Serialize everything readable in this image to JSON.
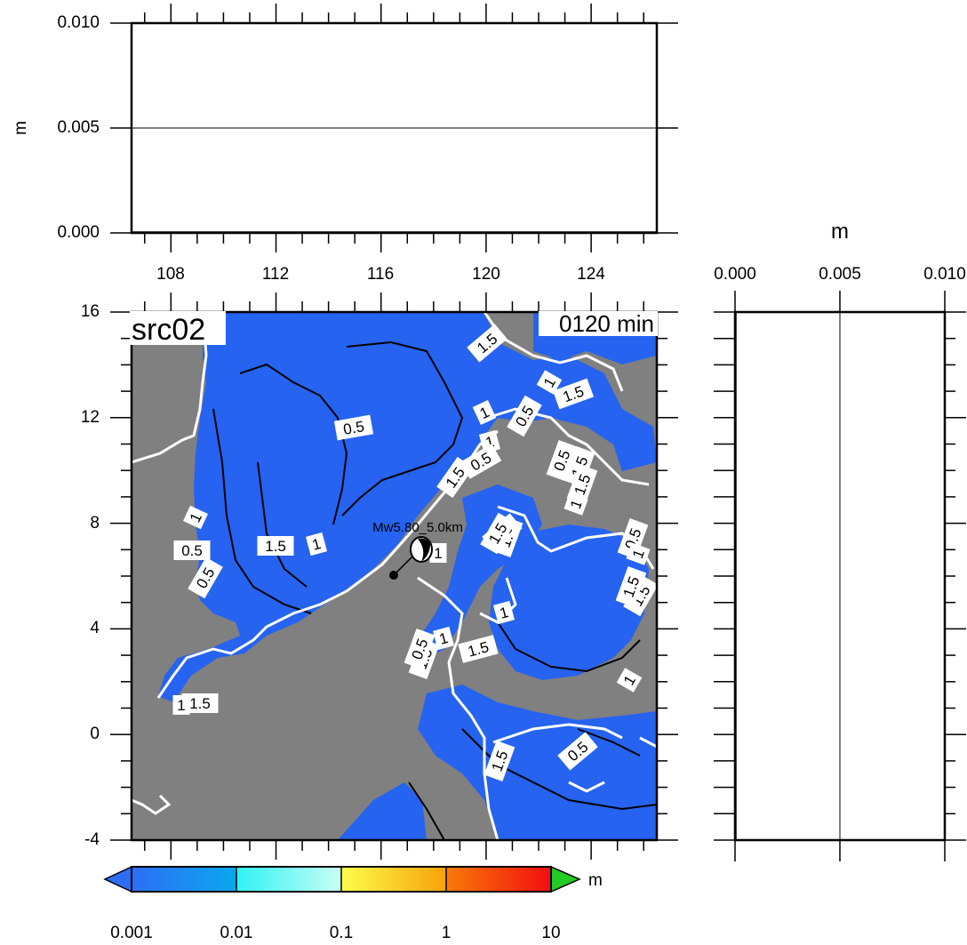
{
  "chart_data": [
    {
      "type": "line",
      "name": "top-profile",
      "ylabel": "m",
      "x_ticks": [
        "108",
        "112",
        "116",
        "120",
        "124"
      ],
      "y_ticks": [
        "0.000",
        "0.005",
        "0.010"
      ],
      "xlim": [
        106.5,
        126.5
      ],
      "ylim": [
        0,
        0.01
      ],
      "series": [
        {
          "x": [
            106.5,
            126.5
          ],
          "values": [
            0,
            0
          ]
        }
      ],
      "grid_y": [
        0.005
      ]
    },
    {
      "type": "heatmap",
      "name": "main-map",
      "title": "src02",
      "time_label": "0120 min",
      "event_label": "Mw5.80_5.0km",
      "x_ticks": [
        "108",
        "112",
        "116",
        "120",
        "124"
      ],
      "y_ticks": [
        "16",
        "12",
        "8",
        "4",
        "0",
        "-4"
      ],
      "xlim": [
        106.5,
        126.5
      ],
      "ylim": [
        -4,
        16
      ],
      "contour_labels": [
        "0.5",
        "1",
        "1.5",
        "0.5",
        "1",
        "0.5",
        "1.5",
        "1",
        "0.5",
        "1",
        "1.5",
        "0.5",
        "1.5",
        "1",
        "1.5",
        "1",
        "0.5",
        "1.5",
        "1",
        "1.5",
        "0.5",
        "0.5",
        "1.5",
        "1",
        "1",
        "0.5",
        "1.5",
        "1.5",
        "0.5",
        "1.5",
        "1",
        "1",
        "1.5",
        "1",
        "1.5",
        "1.5"
      ],
      "colors": {
        "sea": "#2563f0",
        "land": "#808080",
        "coast": "#ffffff",
        "contour": "#000000"
      }
    },
    {
      "type": "line",
      "name": "right-profile",
      "xlabel": "m",
      "x_ticks": [
        "0.000",
        "0.005",
        "0.010"
      ],
      "xlim": [
        0,
        0.01
      ],
      "ylim": [
        -4,
        16
      ],
      "grid_x": [
        0.005
      ]
    }
  ],
  "colorbar": {
    "unit": "m",
    "ticks": [
      "0.001",
      "0.01",
      "0.1",
      "1",
      "10"
    ],
    "segments": [
      {
        "from": "#2e6ef5",
        "to": "#0aa8ee"
      },
      {
        "from": "#2ef3f5",
        "to": "#c8fff4"
      },
      {
        "from": "#fffc4a",
        "to": "#f5a30a"
      },
      {
        "from": "#f97a08",
        "to": "#f00e10"
      }
    ],
    "under_color": "#2e6ef5",
    "over_color": "#22cc22"
  }
}
